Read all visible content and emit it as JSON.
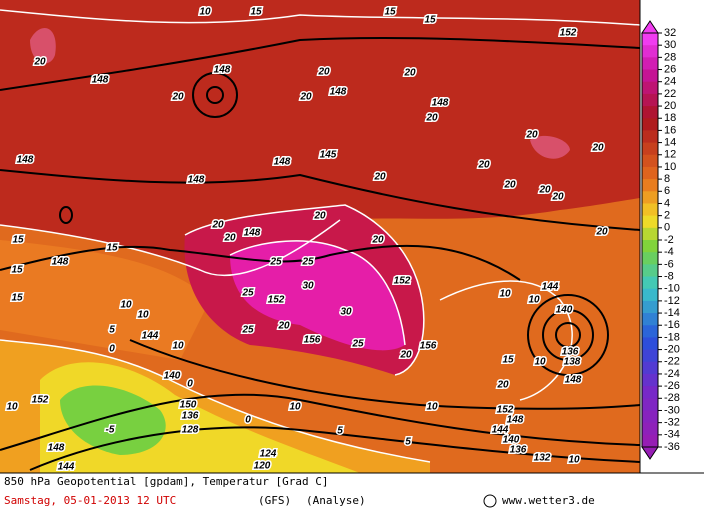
{
  "footer": {
    "product": "850 hPa Geopotential [gpdam], Temperatur [Grad C]",
    "date": "Samstag, 05-01-2013  12 UTC",
    "model": "(GFS)",
    "run": "(Analyse)",
    "credit": "www.wetter3.de"
  },
  "colorbar": {
    "labels": [
      32,
      30,
      28,
      26,
      24,
      22,
      20,
      18,
      16,
      14,
      12,
      10,
      8,
      6,
      4,
      2,
      0,
      -2,
      -4,
      -6,
      -8,
      -10,
      -12,
      -14,
      -16,
      -18,
      -20,
      -22,
      -24,
      -26,
      -28,
      -30,
      -32,
      -34,
      -36
    ]
  },
  "map_labels": [
    "20",
    "148",
    "148",
    "20",
    "20",
    "148",
    "20",
    "20",
    "148",
    "20",
    "152",
    "15",
    "15",
    "15",
    "10",
    "20",
    "20",
    "148",
    "148",
    "148",
    "145",
    "20",
    "20",
    "20",
    "20",
    "20",
    "20",
    "20",
    "20",
    "148",
    "20",
    "20",
    "15",
    "148",
    "15",
    "15",
    "15",
    "10",
    "10",
    "25",
    "25",
    "25",
    "30",
    "152",
    "30",
    "25",
    "20",
    "156",
    "25",
    "20",
    "152",
    "156",
    "144",
    "140",
    "10",
    "10",
    "144",
    "10",
    "5",
    "0",
    "0",
    "140",
    "15",
    "10",
    "136",
    "138",
    "148",
    "152",
    "10",
    "150",
    "136",
    "10",
    "10",
    "20",
    "152",
    "148",
    "128",
    "-5",
    "144",
    "140",
    "136",
    "132",
    "148",
    "144",
    "124",
    "120",
    "5",
    "10",
    "0",
    "5"
  ]
}
